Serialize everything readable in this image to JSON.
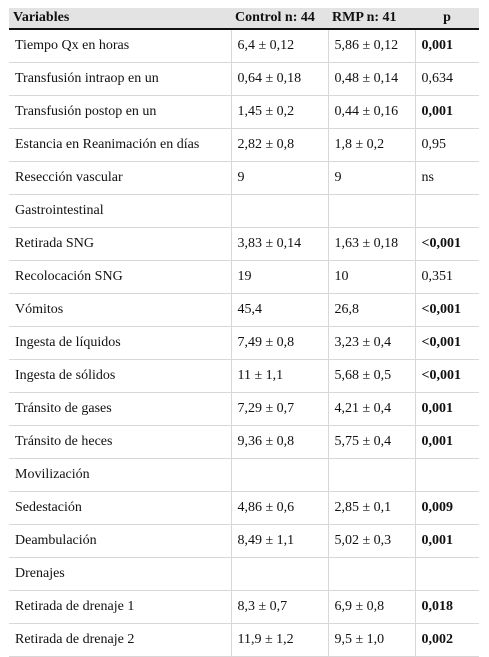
{
  "table": {
    "headers": [
      "Variables",
      "Control n: 44",
      "RMP n: 41",
      "p"
    ],
    "rows": [
      {
        "variable": "Tiempo Qx en horas",
        "control": "6,4 ± 0,12",
        "rmp": "5,86 ± 0,12",
        "p": "0,001",
        "p_bold": true
      },
      {
        "variable": "Transfusión intraop en un",
        "control": "0,64 ± 0,18",
        "rmp": "0,48 ± 0,14",
        "p": "0,634",
        "p_bold": false
      },
      {
        "variable": "Transfusión postop en un",
        "control": "1,45 ± 0,2",
        "rmp": "0,44 ± 0,16",
        "p": "0,001",
        "p_bold": true
      },
      {
        "variable": "Estancia en Reanimación en días",
        "control": "2,82 ± 0,8",
        "rmp": "1,8 ± 0,2",
        "p": "0,95",
        "p_bold": false
      },
      {
        "variable": "Resección vascular",
        "control": "9",
        "rmp": "9",
        "p": "ns",
        "p_bold": false
      },
      {
        "variable": "Gastrointestinal",
        "control": "",
        "rmp": "",
        "p": "",
        "p_bold": false
      },
      {
        "variable": "Retirada SNG",
        "control": "3,83 ± 0,14",
        "rmp": "1,63 ± 0,18",
        "p": "<0,001",
        "p_bold": true
      },
      {
        "variable": "Recolocación SNG",
        "control": "19",
        "rmp": "10",
        "p": "0,351",
        "p_bold": false
      },
      {
        "variable": "Vómitos",
        "control": "45,4",
        "rmp": "26,8",
        "p": "<0,001",
        "p_bold": true
      },
      {
        "variable": "Ingesta de líquidos",
        "control": "7,49 ± 0,8",
        "rmp": "3,23 ± 0,4",
        "p": "<0,001",
        "p_bold": true
      },
      {
        "variable": "Ingesta de sólidos",
        "control": "11 ± 1,1",
        "rmp": "5,68 ± 0,5",
        "p": "<0,001",
        "p_bold": true
      },
      {
        "variable": "Tránsito de gases",
        "control": "7,29 ± 0,7",
        "rmp": "4,21 ± 0,4",
        "p": "0,001",
        "p_bold": true
      },
      {
        "variable": "Tránsito de heces",
        "control": "9,36 ± 0,8",
        "rmp": "5,75 ± 0,4",
        "p": "0,001",
        "p_bold": true
      },
      {
        "variable": "Movilización",
        "control": "",
        "rmp": "",
        "p": "",
        "p_bold": false
      },
      {
        "variable": "Sedestación",
        "control": "4,86 ± 0,6",
        "rmp": "2,85 ± 0,1",
        "p": "0,009",
        "p_bold": true
      },
      {
        "variable": "Deambulación",
        "control": "8,49 ± 1,1",
        "rmp": "5,02 ± 0,3",
        "p": "0,001",
        "p_bold": true
      },
      {
        "variable": "Drenajes",
        "control": "",
        "rmp": "",
        "p": "",
        "p_bold": false
      },
      {
        "variable": "Retirada de drenaje 1",
        "control": "8,3 ± 0,7",
        "rmp": "6,9 ± 0,8",
        "p": "0,018",
        "p_bold": true
      },
      {
        "variable": "Retirada de drenaje 2",
        "control": "11,9 ± 1,2",
        "rmp": "9,5 ± 1,0",
        "p": "0,002",
        "p_bold": true
      }
    ]
  }
}
